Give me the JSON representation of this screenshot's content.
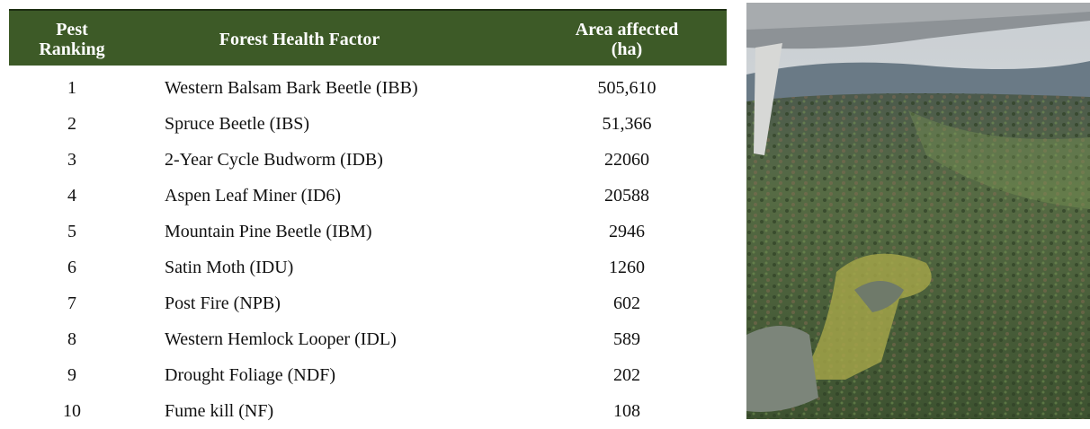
{
  "table": {
    "header": [
      "Pest Ranking",
      "Forest Health Factor",
      "Area affected (ha)"
    ],
    "rows": [
      [
        "1",
        "Western Balsam Bark Beetle (IBB)",
        "505,610"
      ],
      [
        "2",
        "Spruce Beetle (IBS)",
        "51,366"
      ],
      [
        "3",
        "2-Year Cycle Budworm (IDB)",
        "22060"
      ],
      [
        "4",
        "Aspen Leaf Miner (ID6)",
        "20588"
      ],
      [
        "5",
        "Mountain Pine Beetle (IBM)",
        "2946"
      ],
      [
        "6",
        "Satin Moth (IDU)",
        "1260"
      ],
      [
        "7",
        "Post Fire (NPB)",
        "602"
      ],
      [
        "8",
        "Western Hemlock Looper (IDL)",
        "589"
      ],
      [
        "9",
        "Drought Foliage (NDF)",
        "202"
      ],
      [
        "10",
        "Fume kill (NF)",
        "108"
      ]
    ]
  }
}
